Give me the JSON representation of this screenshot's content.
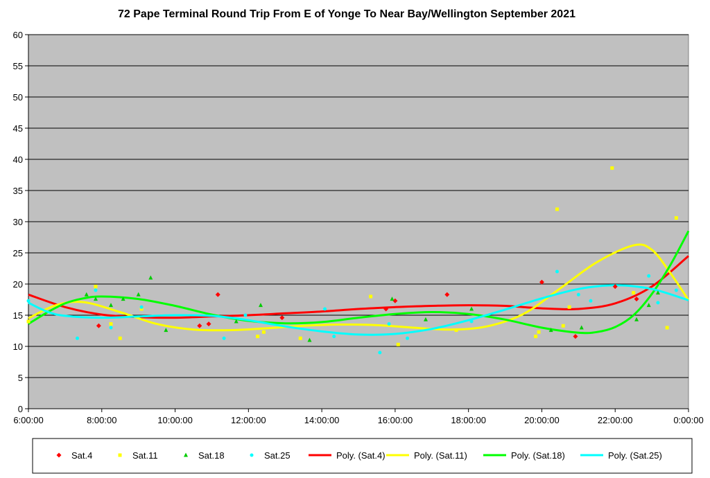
{
  "chart_data": {
    "type": "scatter",
    "title": "72 Pape Terminal Round Trip From E of Yonge To Near Bay/Wellington September 2021",
    "xlabel": "",
    "ylabel": "",
    "xlim": [
      "6:00:00",
      "0:00:00"
    ],
    "ylim": [
      0,
      60
    ],
    "y_ticks": [
      0,
      5,
      10,
      15,
      20,
      25,
      30,
      35,
      40,
      45,
      50,
      55,
      60
    ],
    "x_ticks": [
      "6:00:00",
      "8:00:00",
      "10:00:00",
      "12:00:00",
      "14:00:00",
      "16:00:00",
      "18:00:00",
      "20:00:00",
      "22:00:00",
      "0:00:00"
    ],
    "grid": "horizontal",
    "plot_background": "#c0c0c0",
    "legend_position": "bottom",
    "series": [
      {
        "name": "Sat.4",
        "marker": "diamond",
        "color": "#ff0000",
        "points": [
          [
            "7:55",
            13.3
          ],
          [
            "10:40",
            13.3
          ],
          [
            "10:55",
            13.6
          ],
          [
            "11:10",
            18.3
          ],
          [
            "12:55",
            14.6
          ],
          [
            "15:45",
            16.0
          ],
          [
            "16:00",
            17.3
          ],
          [
            "17:25",
            18.3
          ],
          [
            "20:00",
            20.3
          ],
          [
            "20:55",
            11.6
          ],
          [
            "22:00",
            19.6
          ],
          [
            "22:35",
            17.6
          ]
        ]
      },
      {
        "name": "Sat.11",
        "marker": "square",
        "color": "#ffff00",
        "points": [
          [
            "6:00",
            14.0
          ],
          [
            "7:50",
            19.6
          ],
          [
            "8:15",
            13.6
          ],
          [
            "8:30",
            11.3
          ],
          [
            "9:05",
            16.0
          ],
          [
            "12:15",
            11.6
          ],
          [
            "12:25",
            12.3
          ],
          [
            "13:25",
            11.3
          ],
          [
            "15:20",
            18.0
          ],
          [
            "16:05",
            10.3
          ],
          [
            "17:40",
            12.6
          ],
          [
            "19:50",
            11.6
          ],
          [
            "19:55",
            12.3
          ],
          [
            "20:25",
            32.0
          ],
          [
            "20:35",
            13.3
          ],
          [
            "20:45",
            16.3
          ],
          [
            "21:55",
            38.6
          ],
          [
            "22:30",
            18.6
          ],
          [
            "23:25",
            13.0
          ],
          [
            "23:40",
            30.6
          ]
        ]
      },
      {
        "name": "Sat.18",
        "marker": "triangle",
        "color": "#00cc00",
        "points": [
          [
            "7:35",
            18.3
          ],
          [
            "7:50",
            17.6
          ],
          [
            "8:15",
            16.6
          ],
          [
            "8:35",
            17.6
          ],
          [
            "9:00",
            18.3
          ],
          [
            "9:20",
            21.0
          ],
          [
            "9:45",
            12.6
          ],
          [
            "11:40",
            14.0
          ],
          [
            "12:20",
            16.6
          ],
          [
            "13:40",
            11.0
          ],
          [
            "15:55",
            17.6
          ],
          [
            "16:50",
            14.3
          ],
          [
            "18:05",
            16.0
          ],
          [
            "20:15",
            12.6
          ],
          [
            "21:05",
            13.0
          ],
          [
            "22:35",
            14.3
          ],
          [
            "22:55",
            16.6
          ],
          [
            "23:10",
            18.6
          ]
        ]
      },
      {
        "name": "Sat.25",
        "marker": "circle",
        "color": "#00ffff",
        "points": [
          [
            "6:00",
            17.3
          ],
          [
            "7:20",
            11.3
          ],
          [
            "7:50",
            19.0
          ],
          [
            "8:15",
            13.0
          ],
          [
            "9:05",
            16.3
          ],
          [
            "11:20",
            11.3
          ],
          [
            "11:55",
            15.0
          ],
          [
            "14:05",
            16.0
          ],
          [
            "14:20",
            11.6
          ],
          [
            "15:35",
            9.0
          ],
          [
            "15:50",
            13.6
          ],
          [
            "16:20",
            11.3
          ],
          [
            "18:05",
            14.0
          ],
          [
            "20:25",
            22.0
          ],
          [
            "21:00",
            18.3
          ],
          [
            "21:20",
            17.3
          ],
          [
            "22:55",
            21.3
          ],
          [
            "23:10",
            17.0
          ],
          [
            "23:40",
            19.0
          ]
        ]
      }
    ],
    "trendlines": [
      {
        "name": "Poly. (Sat.4)",
        "color": "#ff0000",
        "points": [
          [
            "6:00",
            18.3
          ],
          [
            "7:00",
            16.3
          ],
          [
            "8:00",
            15.1
          ],
          [
            "9:00",
            14.7
          ],
          [
            "10:00",
            14.6
          ],
          [
            "11:00",
            14.8
          ],
          [
            "12:00",
            15.0
          ],
          [
            "13:00",
            15.3
          ],
          [
            "14:00",
            15.6
          ],
          [
            "15:00",
            16.0
          ],
          [
            "16:00",
            16.3
          ],
          [
            "17:00",
            16.5
          ],
          [
            "18:00",
            16.6
          ],
          [
            "19:00",
            16.5
          ],
          [
            "20:00",
            16.1
          ],
          [
            "21:00",
            16.0
          ],
          [
            "22:00",
            16.9
          ],
          [
            "23:00",
            19.6
          ],
          [
            "0:00",
            24.5
          ]
        ]
      },
      {
        "name": "Poly. (Sat.11)",
        "color": "#ffff00",
        "points": [
          [
            "6:00",
            14.5
          ],
          [
            "6:45",
            16.6
          ],
          [
            "7:30",
            17.1
          ],
          [
            "8:30",
            15.5
          ],
          [
            "9:30",
            13.6
          ],
          [
            "10:30",
            12.7
          ],
          [
            "11:30",
            12.6
          ],
          [
            "12:30",
            12.9
          ],
          [
            "13:30",
            13.3
          ],
          [
            "14:30",
            13.5
          ],
          [
            "15:30",
            13.4
          ],
          [
            "16:30",
            13.0
          ],
          [
            "17:30",
            12.7
          ],
          [
            "18:30",
            13.2
          ],
          [
            "19:30",
            15.2
          ],
          [
            "20:30",
            19.3
          ],
          [
            "21:30",
            23.5
          ],
          [
            "22:30",
            26.2
          ],
          [
            "23:00",
            25.5
          ],
          [
            "23:30",
            21.8
          ],
          [
            "0:00",
            17.4
          ]
        ]
      },
      {
        "name": "Poly. (Sat.18)",
        "color": "#00ff00",
        "points": [
          [
            "6:00",
            13.6
          ],
          [
            "6:30",
            15.4
          ],
          [
            "7:00",
            16.9
          ],
          [
            "7:30",
            17.7
          ],
          [
            "8:00",
            18.0
          ],
          [
            "9:00",
            17.6
          ],
          [
            "10:00",
            16.5
          ],
          [
            "11:00",
            15.1
          ],
          [
            "12:00",
            14.1
          ],
          [
            "13:00",
            13.7
          ],
          [
            "14:00",
            13.9
          ],
          [
            "15:00",
            14.6
          ],
          [
            "16:00",
            15.2
          ],
          [
            "17:00",
            15.5
          ],
          [
            "18:00",
            15.2
          ],
          [
            "19:00",
            14.3
          ],
          [
            "20:00",
            13.0
          ],
          [
            "21:00",
            12.2
          ],
          [
            "21:30",
            12.3
          ],
          [
            "22:00",
            13.1
          ],
          [
            "22:30",
            15.0
          ],
          [
            "23:00",
            18.4
          ],
          [
            "23:30",
            23.0
          ],
          [
            "0:00",
            28.5
          ]
        ]
      },
      {
        "name": "Poly. (Sat.25)",
        "color": "#00ffff",
        "points": [
          [
            "6:00",
            17.0
          ],
          [
            "6:30",
            15.6
          ],
          [
            "7:00",
            14.9
          ],
          [
            "8:00",
            14.6
          ],
          [
            "9:00",
            14.8
          ],
          [
            "10:00",
            15.0
          ],
          [
            "11:00",
            14.9
          ],
          [
            "12:00",
            14.2
          ],
          [
            "13:00",
            13.2
          ],
          [
            "14:00",
            12.4
          ],
          [
            "15:00",
            11.9
          ],
          [
            "16:00",
            12.0
          ],
          [
            "17:00",
            12.8
          ],
          [
            "18:00",
            14.2
          ],
          [
            "19:00",
            15.9
          ],
          [
            "20:00",
            17.7
          ],
          [
            "21:00",
            19.2
          ],
          [
            "22:00",
            19.8
          ],
          [
            "23:00",
            19.2
          ],
          [
            "0:00",
            17.4
          ]
        ]
      }
    ],
    "legend": [
      "Sat.4",
      "Sat.11",
      "Sat.18",
      "Sat.25",
      "Poly. (Sat.4)",
      "Poly. (Sat.11)",
      "Poly. (Sat.18)",
      "Poly. (Sat.25)"
    ]
  }
}
